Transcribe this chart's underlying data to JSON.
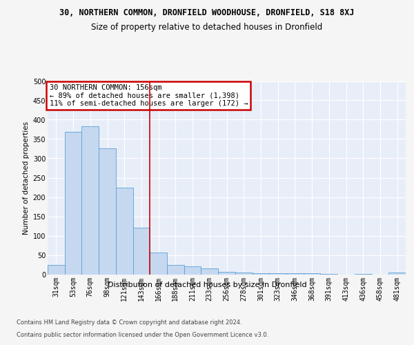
{
  "title_line1": "30, NORTHERN COMMON, DRONFIELD WOODHOUSE, DRONFIELD, S18 8XJ",
  "title_line2": "Size of property relative to detached houses in Dronfield",
  "xlabel": "Distribution of detached houses by size in Dronfield",
  "ylabel": "Number of detached properties",
  "footer_line1": "Contains HM Land Registry data © Crown copyright and database right 2024.",
  "footer_line2": "Contains public sector information licensed under the Open Government Licence v3.0.",
  "annotation_line1": "30 NORTHERN COMMON: 156sqm",
  "annotation_line2": "← 89% of detached houses are smaller (1,398)",
  "annotation_line3": "11% of semi-detached houses are larger (172) →",
  "bar_color": "#c5d8f0",
  "bar_edge_color": "#5a9fd4",
  "vline_color": "#cc0000",
  "vline_position": 5.5,
  "categories": [
    "31sqm",
    "53sqm",
    "76sqm",
    "98sqm",
    "121sqm",
    "143sqm",
    "166sqm",
    "188sqm",
    "211sqm",
    "233sqm",
    "256sqm",
    "278sqm",
    "301sqm",
    "323sqm",
    "346sqm",
    "368sqm",
    "391sqm",
    "413sqm",
    "436sqm",
    "458sqm",
    "481sqm"
  ],
  "values": [
    25,
    368,
    383,
    325,
    224,
    120,
    57,
    25,
    20,
    15,
    7,
    5,
    3,
    2,
    2,
    2,
    1,
    0,
    1,
    0,
    4
  ],
  "ylim": [
    0,
    500
  ],
  "yticks": [
    0,
    50,
    100,
    150,
    200,
    250,
    300,
    350,
    400,
    450,
    500
  ],
  "fig_bg_color": "#f5f5f5",
  "background_color": "#e8eef8",
  "grid_color": "#ffffff",
  "annotation_box_color": "#ffffff",
  "annotation_box_edge_color": "#cc0000",
  "title1_fontsize": 8.5,
  "title2_fontsize": 8.5,
  "ylabel_fontsize": 7.5,
  "xlabel_fontsize": 8.0,
  "tick_fontsize": 7.0,
  "footer_fontsize": 6.0,
  "ann_fontsize": 7.5
}
